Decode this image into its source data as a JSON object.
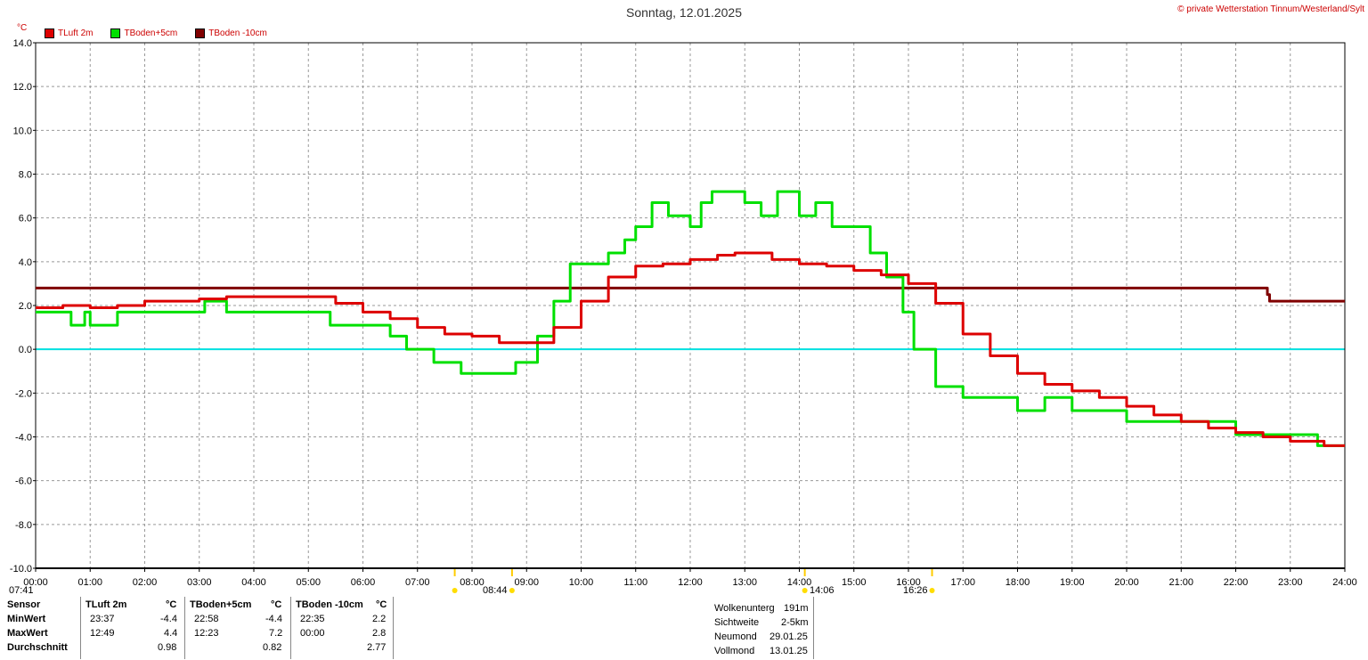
{
  "header": {
    "title": "Sonntag, 12.01.2025",
    "copyright": "© private Wetterstation Tinnum/Westerland/Sylt",
    "unit": "°C"
  },
  "colors": {
    "tluft": "#dd0000",
    "tboden5": "#00e000",
    "tboden10": "#800000",
    "zero_line": "#00e0e0",
    "grid": "#999999"
  },
  "chart_data": {
    "type": "line",
    "xlabel": "",
    "ylabel": "°C",
    "xlim": [
      0,
      24
    ],
    "ylim": [
      -10,
      14
    ],
    "ytick_labels": [
      "14.0",
      "12.0",
      "10.0",
      "8.0",
      "6.0",
      "4.0",
      "2.0",
      "0.0",
      "-2.0",
      "-4.0",
      "-6.0",
      "-8.0",
      "-10.0"
    ],
    "xtick_labels": [
      "00:00",
      "01:00",
      "02:00",
      "03:00",
      "04:00",
      "05:00",
      "06:00",
      "07:00",
      "08:00",
      "09:00",
      "10:00",
      "11:00",
      "12:00",
      "13:00",
      "14:00",
      "15:00",
      "16:00",
      "17:00",
      "18:00",
      "19:00",
      "20:00",
      "21:00",
      "22:00",
      "23:00",
      "24:00"
    ],
    "grid": true,
    "legend_position": "top-left",
    "series": [
      {
        "name": "TLuft 2m",
        "color": "#dd0000",
        "x": [
          0,
          0.5,
          1,
          1.5,
          2,
          2.5,
          3,
          3.5,
          4,
          4.5,
          5,
          5.5,
          6,
          6.5,
          7,
          7.5,
          8,
          8.5,
          9,
          9.5,
          10,
          10.5,
          11,
          11.5,
          12,
          12.5,
          12.82,
          13.5,
          14,
          14.5,
          15,
          15.5,
          16,
          16.5,
          17,
          17.5,
          18,
          18.5,
          19,
          19.5,
          20,
          20.5,
          21,
          21.5,
          22,
          22.5,
          23,
          23.62,
          24
        ],
        "y": [
          1.9,
          2.0,
          1.9,
          2.0,
          2.2,
          2.2,
          2.3,
          2.4,
          2.4,
          2.4,
          2.4,
          2.1,
          1.7,
          1.4,
          1.0,
          0.7,
          0.6,
          0.3,
          0.3,
          1.0,
          2.2,
          3.3,
          3.8,
          3.9,
          4.1,
          4.3,
          4.4,
          4.1,
          3.9,
          3.8,
          3.6,
          3.4,
          3.0,
          2.1,
          0.7,
          -0.3,
          -1.1,
          -1.6,
          -1.9,
          -2.2,
          -2.6,
          -3.0,
          -3.3,
          -3.6,
          -3.8,
          -4.0,
          -4.2,
          -4.4,
          -4.4
        ]
      },
      {
        "name": "TBoden+5cm",
        "color": "#00e000",
        "x": [
          0,
          0.6,
          0.65,
          0.9,
          1.0,
          1.5,
          2,
          3,
          3.1,
          3.5,
          4.0,
          4.5,
          5.0,
          5.2,
          5.4,
          6,
          6.5,
          6.8,
          7.0,
          7.3,
          7.5,
          7.8,
          8.0,
          8.5,
          8.8,
          9.0,
          9.2,
          9.5,
          9.8,
          10.2,
          10.5,
          10.8,
          11.0,
          11.3,
          11.6,
          12.0,
          12.2,
          12.4,
          12.8,
          13.0,
          13.3,
          13.6,
          14.0,
          14.3,
          14.6,
          15.0,
          15.3,
          15.6,
          15.9,
          16.1,
          16.5,
          17.0,
          17.5,
          18.0,
          18.5,
          19.0,
          19.5,
          20.0,
          20.5,
          21.0,
          21.5,
          22.0,
          22.5,
          23.0,
          23.5,
          24
        ],
        "y": [
          1.7,
          1.7,
          1.1,
          1.7,
          1.1,
          1.7,
          1.7,
          1.7,
          2.2,
          1.7,
          1.7,
          1.7,
          1.7,
          1.7,
          1.1,
          1.1,
          0.6,
          0.0,
          0.0,
          -0.6,
          -0.6,
          -1.1,
          -1.1,
          -1.1,
          -0.6,
          -0.6,
          0.6,
          2.2,
          3.9,
          3.9,
          4.4,
          5.0,
          5.6,
          6.7,
          6.1,
          5.6,
          6.7,
          7.2,
          7.2,
          6.7,
          6.1,
          7.2,
          6.1,
          6.7,
          5.6,
          5.6,
          4.4,
          3.3,
          1.7,
          0.0,
          -1.7,
          -2.2,
          -2.2,
          -2.8,
          -2.2,
          -2.8,
          -2.8,
          -3.3,
          -3.3,
          -3.3,
          -3.3,
          -3.9,
          -3.9,
          -3.9,
          -4.4,
          -4.4
        ]
      },
      {
        "name": "TBoden -10cm",
        "color": "#800000",
        "x": [
          0,
          22.56,
          22.58,
          22.62,
          24
        ],
        "y": [
          2.8,
          2.8,
          2.5,
          2.2,
          2.2
        ]
      }
    ]
  },
  "sun_events": [
    {
      "label": "07:41",
      "hour": 7.683
    },
    {
      "label": "08:44",
      "hour": 8.733
    },
    {
      "label": "14:06",
      "hour": 14.1
    },
    {
      "label": "16:26",
      "hour": 16.433
    }
  ],
  "stats": {
    "headers": {
      "sensor": "Sensor",
      "tluft": "TLuft 2m",
      "tluft_unit": "°C",
      "tb5": "TBoden+5cm",
      "tb5_unit": "°C",
      "tb10": "TBoden -10cm",
      "tb10_unit": "°C"
    },
    "rows": [
      {
        "label": "MinWert",
        "tluft_time": "23:37",
        "tluft_val": "-4.4",
        "tb5_time": "22:58",
        "tb5_val": "-4.4",
        "tb10_time": "22:35",
        "tb10_val": "2.2"
      },
      {
        "label": "MaxWert",
        "tluft_time": "12:49",
        "tluft_val": "4.4",
        "tb5_time": "12:23",
        "tb5_val": "7.2",
        "tb10_time": "00:00",
        "tb10_val": "2.8"
      },
      {
        "label": "Durchschnitt",
        "tluft_time": "",
        "tluft_val": "0.98",
        "tb5_time": "",
        "tb5_val": "0.82",
        "tb10_time": "",
        "tb10_val": "2.77"
      }
    ]
  },
  "info": [
    {
      "label": "Wolkenunterg",
      "value": "191m"
    },
    {
      "label": "Sichtweite",
      "value": "2-5km"
    },
    {
      "label": "Neumond",
      "value": "29.01.25"
    },
    {
      "label": "Vollmond",
      "value": "13.01.25"
    }
  ]
}
